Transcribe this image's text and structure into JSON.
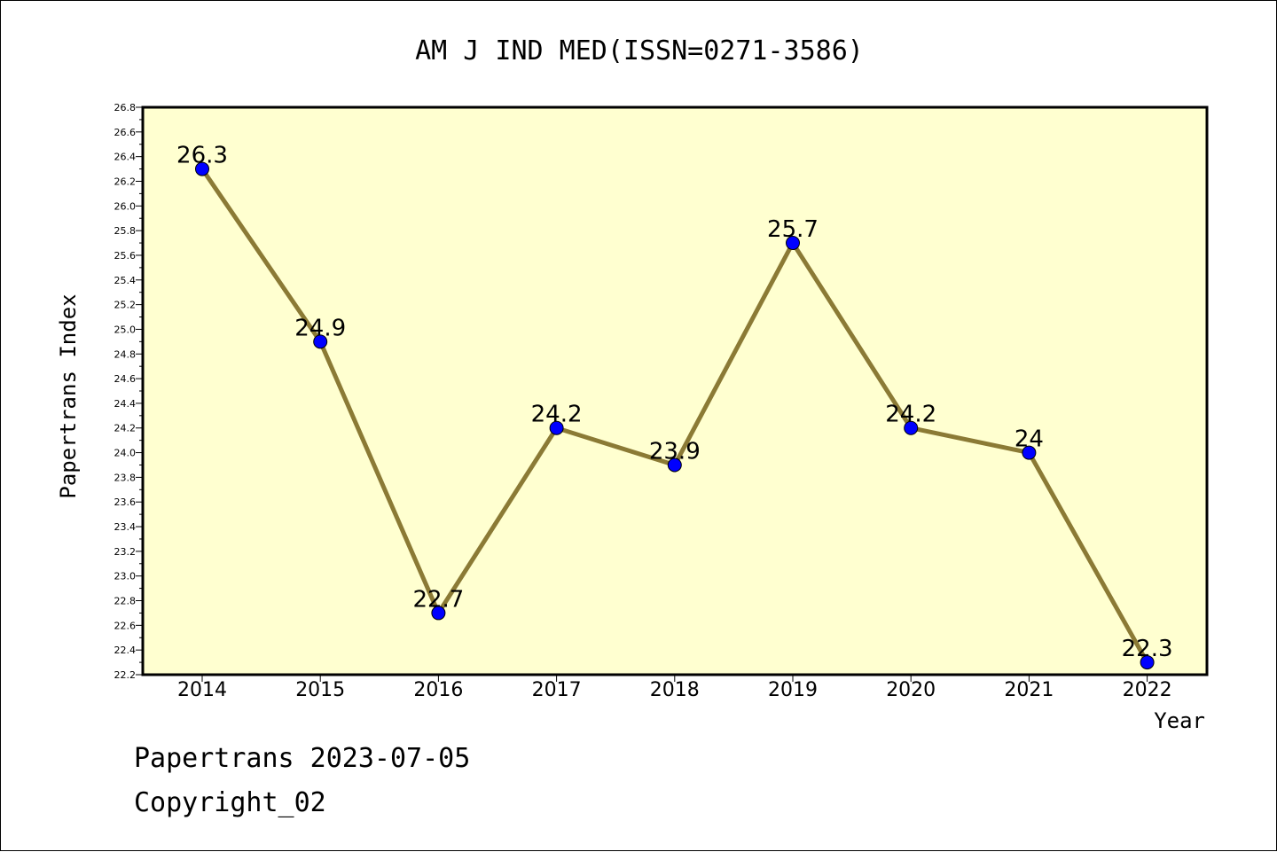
{
  "chart_data": {
    "type": "line",
    "title": "AM J IND MED(ISSN=0271-3586)",
    "xlabel": "Year",
    "ylabel": "Papertrans Index",
    "categories": [
      "2014",
      "2015",
      "2016",
      "2017",
      "2018",
      "2019",
      "2020",
      "2021",
      "2022"
    ],
    "values": [
      26.3,
      24.9,
      22.7,
      24.2,
      23.9,
      25.7,
      24.2,
      24.0,
      22.3
    ],
    "value_labels": [
      "26.3",
      "24.9",
      "22.7",
      "24.2",
      "23.9",
      "25.7",
      "24.2",
      "24",
      "22.3"
    ],
    "ylim": [
      22.2,
      26.8
    ],
    "yticks": [
      "22.2",
      "22.4",
      "22.6",
      "22.8",
      "23.0",
      "23.2",
      "23.4",
      "23.6",
      "23.8",
      "24.0",
      "24.2",
      "24.4",
      "24.6",
      "24.8",
      "25.0",
      "25.2",
      "25.4",
      "25.6",
      "25.8",
      "26.0",
      "26.2",
      "26.4",
      "26.6",
      "26.8"
    ],
    "grid": false,
    "colors": {
      "plot_background": "#ffffd0",
      "line": "#8b7a35",
      "marker": "#0000ff"
    }
  },
  "footer": {
    "line1": "Papertrans 2023-07-05",
    "line2": "Copyright_02"
  }
}
